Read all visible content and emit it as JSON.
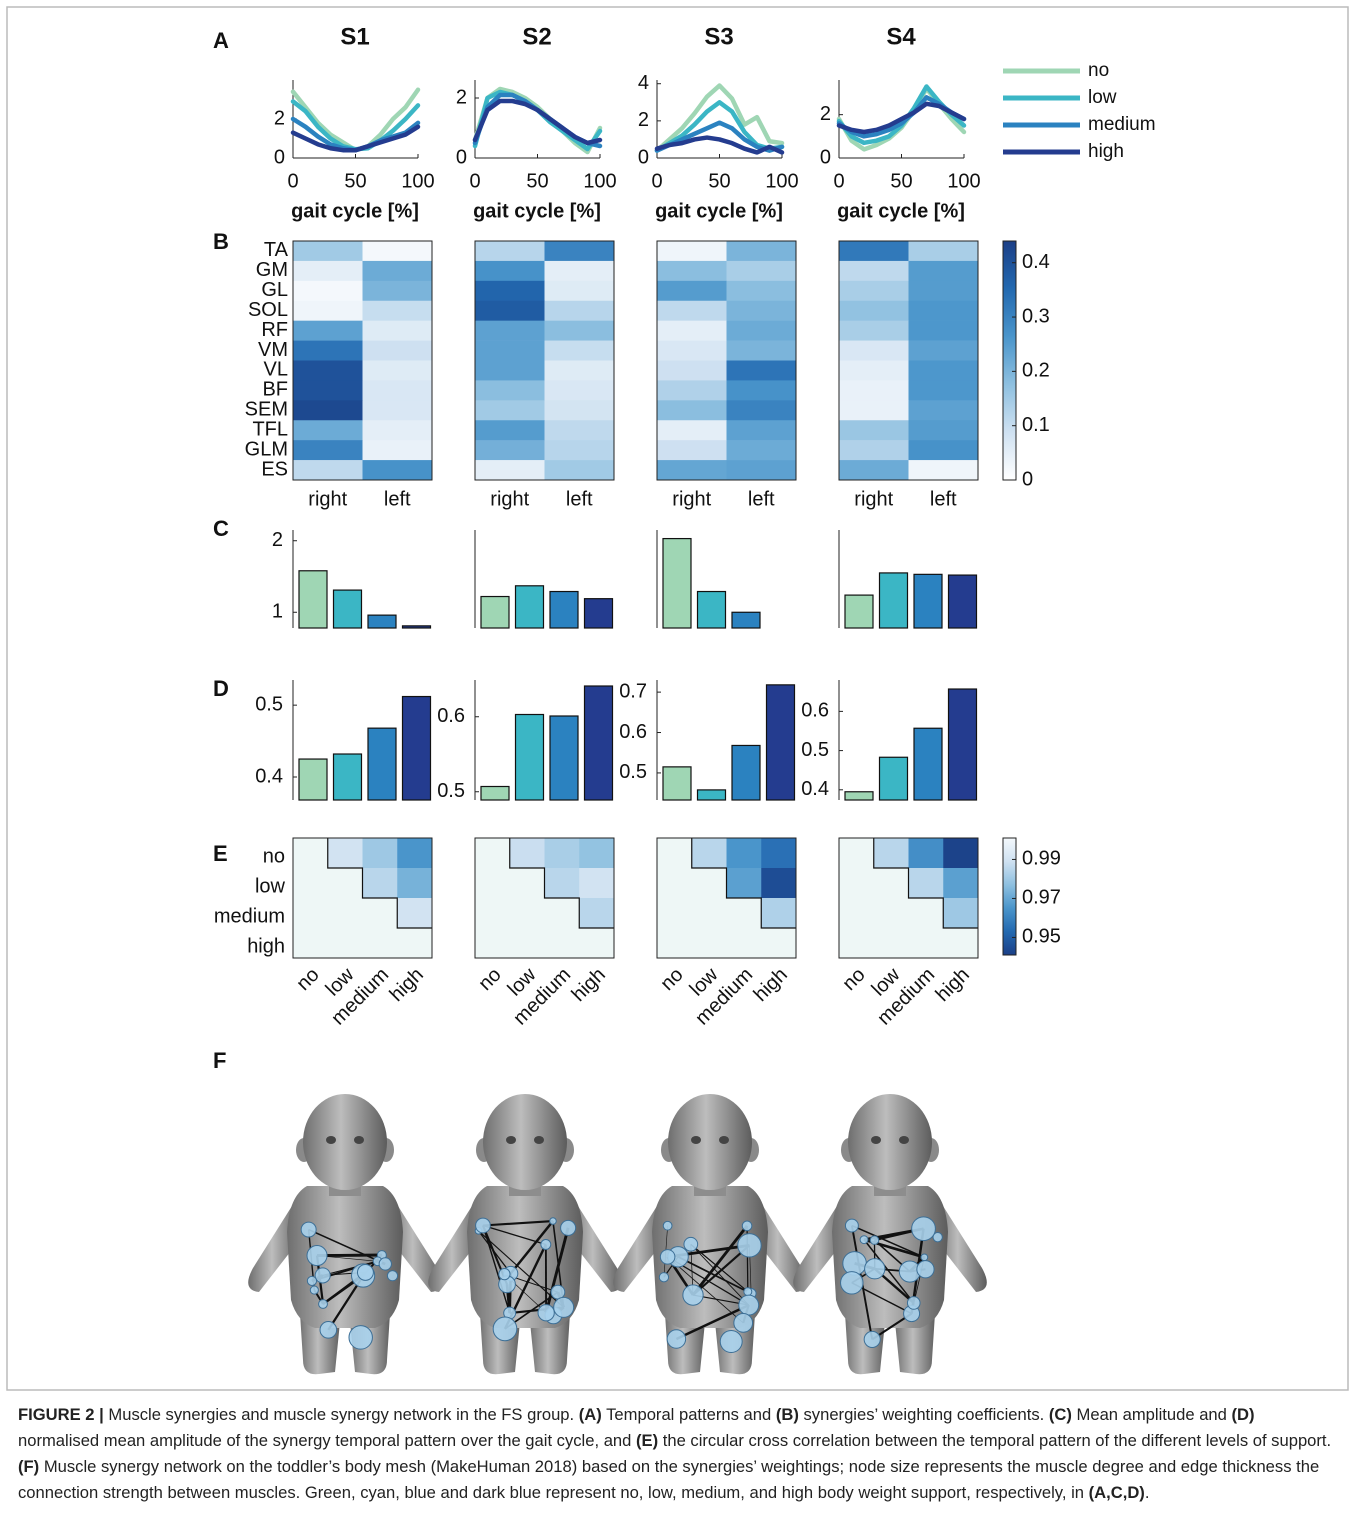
{
  "figure": {
    "levels": {
      "names": [
        "no",
        "low",
        "medium",
        "high"
      ],
      "colors": [
        "#9fd6b4",
        "#3bb6c5",
        "#2b82c0",
        "#243c8f"
      ]
    },
    "panels": [
      {
        "label": "A",
        "type": "line",
        "xlabel": "gait cycle [%]",
        "charts": [
          {
            "title": "S1",
            "x": [
              0,
              10,
              20,
              30,
              40,
              50,
              60,
              70,
              80,
              90,
              100
            ],
            "xlim": [
              0,
              100
            ],
            "xticks": [
              0,
              50,
              100
            ],
            "ylim": [
              0,
              4
            ],
            "yticks": [
              0,
              2
            ],
            "series": [
              {
                "values": [
                  3.4,
                  2.6,
                  1.8,
                  1.2,
                  0.8,
                  0.4,
                  0.6,
                  1.2,
                  2.0,
                  2.6,
                  3.5
                ]
              },
              {
                "values": [
                  2.9,
                  2.4,
                  1.6,
                  1.0,
                  0.6,
                  0.45,
                  0.5,
                  0.9,
                  1.4,
                  2.0,
                  2.7
                ]
              },
              {
                "values": [
                  2.0,
                  1.6,
                  1.1,
                  0.7,
                  0.5,
                  0.4,
                  0.6,
                  0.9,
                  1.1,
                  1.3,
                  1.8
                ]
              },
              {
                "values": [
                  1.3,
                  1.0,
                  0.7,
                  0.5,
                  0.4,
                  0.4,
                  0.6,
                  0.8,
                  1.0,
                  1.2,
                  1.6
                ]
              }
            ]
          },
          {
            "title": "S2",
            "x": [
              0,
              10,
              20,
              30,
              40,
              50,
              60,
              70,
              80,
              90,
              100
            ],
            "xlim": [
              0,
              100
            ],
            "xticks": [
              0,
              50,
              100
            ],
            "ylim": [
              0,
              2.6
            ],
            "yticks": [
              0,
              2
            ],
            "series": [
              {
                "values": [
                  0.6,
                  2.0,
                  2.3,
                  2.2,
                  2.0,
                  1.7,
                  1.3,
                  0.9,
                  0.5,
                  0.2,
                  1.0
                ]
              },
              {
                "values": [
                  0.4,
                  2.0,
                  2.2,
                  2.1,
                  1.9,
                  1.6,
                  1.2,
                  0.9,
                  0.6,
                  0.3,
                  0.9
                ]
              },
              {
                "values": [
                  0.5,
                  1.7,
                  2.1,
                  2.1,
                  1.9,
                  1.6,
                  1.3,
                  1.0,
                  0.7,
                  0.5,
                  0.4
                ]
              },
              {
                "values": [
                  0.6,
                  1.6,
                  1.9,
                  1.9,
                  1.8,
                  1.6,
                  1.3,
                  1.0,
                  0.7,
                  0.5,
                  0.6
                ]
              }
            ]
          },
          {
            "title": "S3",
            "x": [
              0,
              10,
              20,
              30,
              40,
              50,
              60,
              70,
              80,
              90,
              100
            ],
            "xlim": [
              0,
              100
            ],
            "xticks": [
              0,
              50,
              100
            ],
            "ylim": [
              0,
              4.2
            ],
            "yticks": [
              0,
              2,
              4
            ],
            "series": [
              {
                "values": [
                  0.4,
                  1.0,
                  1.6,
                  2.4,
                  3.3,
                  3.9,
                  3.2,
                  1.8,
                  2.2,
                  0.9,
                  0.8
                ]
              },
              {
                "values": [
                  0.4,
                  0.8,
                  1.2,
                  1.8,
                  2.5,
                  3.0,
                  2.5,
                  1.4,
                  0.7,
                  0.5,
                  0.6
                ]
              },
              {
                "values": [
                  0.4,
                  0.7,
                  1.0,
                  1.3,
                  1.6,
                  1.9,
                  1.6,
                  1.0,
                  0.6,
                  0.4,
                  0.6
                ]
              },
              {
                "values": [
                  0.5,
                  0.7,
                  0.8,
                  1.0,
                  1.1,
                  1.0,
                  0.8,
                  0.5,
                  0.3,
                  0.6,
                  0.3
                ]
              }
            ]
          },
          {
            "title": "S4",
            "x": [
              0,
              10,
              20,
              30,
              40,
              50,
              60,
              70,
              80,
              90,
              100
            ],
            "xlim": [
              0,
              100
            ],
            "xticks": [
              0,
              50,
              100
            ],
            "ylim": [
              0,
              3.6
            ],
            "yticks": [
              0,
              2
            ],
            "series": [
              {
                "values": [
                  1.8,
                  0.8,
                  0.4,
                  0.6,
                  0.9,
                  1.4,
                  2.2,
                  3.2,
                  2.5,
                  1.8,
                  1.2
                ]
              },
              {
                "values": [
                  1.7,
                  1.0,
                  0.7,
                  0.8,
                  1.0,
                  1.5,
                  2.3,
                  3.3,
                  2.6,
                  2.0,
                  1.5
                ]
              },
              {
                "values": [
                  1.6,
                  1.2,
                  1.0,
                  1.1,
                  1.3,
                  1.6,
                  2.1,
                  2.8,
                  2.5,
                  2.1,
                  1.8
                ]
              },
              {
                "values": [
                  1.5,
                  1.3,
                  1.2,
                  1.3,
                  1.5,
                  1.8,
                  2.1,
                  2.5,
                  2.4,
                  2.1,
                  1.8
                ]
              }
            ]
          }
        ]
      },
      {
        "label": "B",
        "type": "heatmap",
        "rows": [
          "TA",
          "GM",
          "GL",
          "SOL",
          "RF",
          "VM",
          "VL",
          "BF",
          "SEM",
          "TFL",
          "GLM",
          "ES"
        ],
        "columns": [
          "right",
          "left"
        ],
        "colormap": [
          "#ffffff",
          "#cfe1f1",
          "#8ec0e0",
          "#4a95cb",
          "#2369b0",
          "#1b3f87"
        ],
        "colorbar": {
          "lim": [
            0,
            0.44
          ],
          "ticks": [
            0,
            0.1,
            0.2,
            0.3,
            0.4
          ]
        },
        "charts": [
          {
            "values": [
              [
                0.15,
                0.02
              ],
              [
                0.05,
                0.22
              ],
              [
                0.02,
                0.2
              ],
              [
                0.03,
                0.1
              ],
              [
                0.24,
                0.06
              ],
              [
                0.33,
                0.09
              ],
              [
                0.4,
                0.06
              ],
              [
                0.4,
                0.07
              ],
              [
                0.42,
                0.07
              ],
              [
                0.22,
                0.05
              ],
              [
                0.3,
                0.04
              ],
              [
                0.11,
                0.27
              ]
            ]
          },
          {
            "values": [
              [
                0.12,
                0.3
              ],
              [
                0.27,
                0.05
              ],
              [
                0.36,
                0.06
              ],
              [
                0.38,
                0.12
              ],
              [
                0.24,
                0.18
              ],
              [
                0.24,
                0.1
              ],
              [
                0.24,
                0.06
              ],
              [
                0.18,
                0.07
              ],
              [
                0.15,
                0.08
              ],
              [
                0.25,
                0.11
              ],
              [
                0.21,
                0.12
              ],
              [
                0.05,
                0.15
              ]
            ]
          },
          {
            "values": [
              [
                0.03,
                0.2
              ],
              [
                0.18,
                0.14
              ],
              [
                0.25,
                0.18
              ],
              [
                0.11,
                0.2
              ],
              [
                0.05,
                0.22
              ],
              [
                0.07,
                0.2
              ],
              [
                0.09,
                0.33
              ],
              [
                0.13,
                0.27
              ],
              [
                0.18,
                0.3
              ],
              [
                0.05,
                0.24
              ],
              [
                0.09,
                0.22
              ],
              [
                0.23,
                0.24
              ]
            ]
          },
          {
            "values": [
              [
                0.32,
                0.14
              ],
              [
                0.11,
                0.25
              ],
              [
                0.14,
                0.25
              ],
              [
                0.17,
                0.26
              ],
              [
                0.14,
                0.26
              ],
              [
                0.07,
                0.24
              ],
              [
                0.05,
                0.26
              ],
              [
                0.04,
                0.26
              ],
              [
                0.04,
                0.24
              ],
              [
                0.16,
                0.25
              ],
              [
                0.13,
                0.27
              ],
              [
                0.22,
                0.03
              ]
            ]
          }
        ]
      },
      {
        "label": "C",
        "type": "bar",
        "charts": [
          {
            "ylim": [
              0.78,
              2.15
            ],
            "yticks": [
              1,
              2
            ],
            "values": [
              1.58,
              1.31,
              0.96,
              0.81
            ]
          },
          {
            "ylim": [
              0.78,
              2.15
            ],
            "values": [
              1.22,
              1.37,
              1.29,
              1.19
            ]
          },
          {
            "ylim": [
              0.78,
              2.15
            ],
            "values": [
              2.03,
              1.29,
              1.0,
              0.78
            ]
          },
          {
            "ylim": [
              0.78,
              2.15
            ],
            "values": [
              1.24,
              1.55,
              1.53,
              1.52
            ]
          }
        ]
      },
      {
        "label": "D",
        "type": "bar",
        "charts": [
          {
            "ylim": [
              0.368,
              0.535
            ],
            "yticks": [
              0.4,
              0.5
            ],
            "values": [
              0.425,
              0.432,
              0.468,
              0.512
            ]
          },
          {
            "ylim": [
              0.489,
              0.649
            ],
            "yticks": [
              0.5,
              0.6
            ],
            "values": [
              0.507,
              0.603,
              0.601,
              0.641
            ]
          },
          {
            "ylim": [
              0.433,
              0.73
            ],
            "yticks": [
              0.5,
              0.6,
              0.7
            ],
            "values": [
              0.515,
              0.458,
              0.568,
              0.718
            ]
          },
          {
            "ylim": [
              0.374,
              0.68
            ],
            "yticks": [
              0.4,
              0.5,
              0.6
            ],
            "values": [
              0.395,
              0.483,
              0.557,
              0.657
            ]
          }
        ]
      },
      {
        "label": "E",
        "type": "matrix",
        "rows": [
          "no",
          "low",
          "medium",
          "high"
        ],
        "columns": [
          "no",
          "low",
          "medium",
          "high"
        ],
        "colormap": [
          "#1b3f87",
          "#2369b0",
          "#4a95cb",
          "#8ec0e0",
          "#cfe1f1",
          "#f4f9fc"
        ],
        "colorbar": {
          "lim": [
            0.941,
            1.001
          ],
          "ticks": [
            0.95,
            0.97,
            0.99
          ]
        },
        "charts": [
          {
            "values": [
              [
                null,
                0.99,
                0.98,
                0.965
              ],
              [
                null,
                null,
                0.985,
                0.973
              ],
              [
                null,
                null,
                null,
                0.99
              ],
              [
                null,
                null,
                null,
                null
              ]
            ]
          },
          {
            "values": [
              [
                null,
                0.988,
                0.982,
                0.978
              ],
              [
                null,
                null,
                0.985,
                0.99
              ],
              [
                null,
                null,
                null,
                0.985
              ],
              [
                null,
                null,
                null,
                null
              ]
            ]
          },
          {
            "values": [
              [
                null,
                0.985,
                0.965,
                0.955
              ],
              [
                null,
                null,
                0.968,
                0.945
              ],
              [
                null,
                null,
                null,
                0.983
              ],
              [
                null,
                null,
                null,
                null
              ]
            ]
          },
          {
            "values": [
              [
                null,
                0.985,
                0.963,
                0.942
              ],
              [
                null,
                null,
                0.985,
                0.968
              ],
              [
                null,
                null,
                null,
                0.98
              ],
              [
                null,
                null,
                null,
                null
              ]
            ]
          }
        ]
      },
      {
        "label": "F",
        "type": "image"
      }
    ]
  },
  "caption": {
    "segments": [
      {
        "text": "FIGURE 2 |",
        "bold": true
      },
      {
        "text": " Muscle synergies and muscle synergy network in the FS group. ",
        "bold": false
      },
      {
        "text": "(A)",
        "bold": true
      },
      {
        "text": " Temporal patterns and ",
        "bold": false
      },
      {
        "text": "(B)",
        "bold": true
      },
      {
        "text": " synergies’ weighting coefficients. ",
        "bold": false
      },
      {
        "text": "(C)",
        "bold": true
      },
      {
        "text": " Mean amplitude and ",
        "bold": false
      },
      {
        "text": "(D)",
        "bold": true
      },
      {
        "text": " normalised mean amplitude of the synergy temporal pattern over the gait cycle, and ",
        "bold": false
      },
      {
        "text": "(E)",
        "bold": true
      },
      {
        "text": " the circular cross correlation between the temporal pattern of the different levels of support. ",
        "bold": false
      },
      {
        "text": "(F)",
        "bold": true
      },
      {
        "text": " Muscle synergy network on the toddler’s body mesh (MakeHuman 2018) based on the synergies’ weightings; node size represents the muscle degree and edge thickness the connection strength between muscles. Green, cyan, blue and dark blue represent no, low, medium, and high body weight support, respectively, in ",
        "bold": false
      },
      {
        "text": "(A,C,D)",
        "bold": true
      },
      {
        "text": ".",
        "bold": false
      }
    ]
  }
}
